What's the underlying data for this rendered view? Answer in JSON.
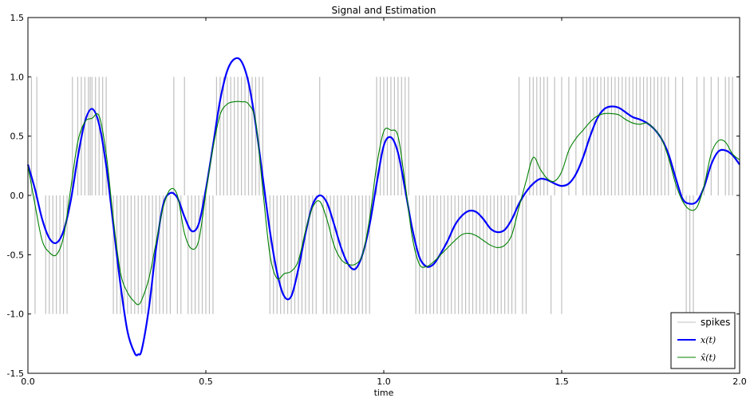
{
  "chart_data": {
    "type": "line",
    "title": "Signal and Estimation",
    "xlabel": "time",
    "ylabel": "",
    "xlim": [
      0.0,
      2.0
    ],
    "ylim": [
      -1.5,
      1.5
    ],
    "xticks": [
      0.0,
      0.5,
      1.0,
      1.5,
      2.0
    ],
    "xtick_labels": [
      "0.0",
      "0.5",
      "1.0",
      "1.5",
      "2.0"
    ],
    "yticks": [
      -1.5,
      -1.0,
      -0.5,
      0.0,
      0.5,
      1.0,
      1.5
    ],
    "ytick_labels": [
      "-1.5",
      "-1.0",
      "-0.5",
      "0.0",
      "0.5",
      "1.0",
      "1.5"
    ],
    "grid": false,
    "legend_position": "bottom-right",
    "legend": [
      "spikes",
      "$x(t)$",
      "$\\hat{x}(t)$"
    ],
    "legend_display": [
      {
        "label": "spikes",
        "math": false
      },
      {
        "label": "x(t)",
        "math": true
      },
      {
        "label": "x̂(t)",
        "math": true
      }
    ],
    "series": [
      {
        "name": "spikes",
        "kind": "spikes",
        "color": "#c0c0c0",
        "positive_times": [
          0.01,
          0.025,
          0.125,
          0.14,
          0.15,
          0.16,
          0.17,
          0.175,
          0.18,
          0.19,
          0.2,
          0.21,
          0.22,
          0.41,
          0.44,
          0.53,
          0.54,
          0.55,
          0.56,
          0.57,
          0.58,
          0.59,
          0.6,
          0.61,
          0.62,
          0.63,
          0.64,
          0.65,
          0.66,
          0.82,
          0.98,
          0.99,
          1.0,
          1.01,
          1.02,
          1.03,
          1.04,
          1.05,
          1.06,
          1.07,
          1.38,
          1.41,
          1.42,
          1.43,
          1.44,
          1.45,
          1.46,
          1.48,
          1.5,
          1.52,
          1.54,
          1.56,
          1.57,
          1.58,
          1.59,
          1.6,
          1.61,
          1.62,
          1.63,
          1.64,
          1.65,
          1.66,
          1.67,
          1.68,
          1.69,
          1.7,
          1.71,
          1.72,
          1.73,
          1.74,
          1.75,
          1.76,
          1.77,
          1.78,
          1.79,
          1.8,
          1.82,
          1.84,
          1.88,
          1.9,
          1.92,
          1.94,
          1.96,
          1.97,
          1.98
        ],
        "negative_times": [
          0.02,
          0.05,
          0.06,
          0.07,
          0.08,
          0.09,
          0.1,
          0.11,
          0.24,
          0.25,
          0.26,
          0.27,
          0.28,
          0.29,
          0.3,
          0.31,
          0.32,
          0.33,
          0.34,
          0.35,
          0.36,
          0.37,
          0.38,
          0.39,
          0.4,
          0.42,
          0.43,
          0.45,
          0.46,
          0.47,
          0.48,
          0.49,
          0.5,
          0.51,
          0.52,
          0.68,
          0.69,
          0.7,
          0.71,
          0.72,
          0.73,
          0.74,
          0.75,
          0.76,
          0.77,
          0.78,
          0.79,
          0.8,
          0.81,
          0.83,
          0.84,
          0.85,
          0.86,
          0.87,
          0.88,
          0.89,
          0.9,
          0.91,
          0.92,
          0.93,
          0.94,
          0.95,
          0.96,
          1.09,
          1.1,
          1.11,
          1.12,
          1.13,
          1.14,
          1.15,
          1.16,
          1.17,
          1.18,
          1.19,
          1.2,
          1.21,
          1.22,
          1.23,
          1.24,
          1.25,
          1.26,
          1.27,
          1.28,
          1.29,
          1.3,
          1.31,
          1.32,
          1.33,
          1.34,
          1.35,
          1.36,
          1.37,
          1.39,
          1.4,
          1.47,
          1.5,
          1.85,
          1.86,
          1.87
        ]
      },
      {
        "name": "$x(t)$",
        "kind": "line",
        "color": "#0000ff",
        "x": [
          0.0,
          0.02,
          0.04,
          0.06,
          0.08,
          0.1,
          0.12,
          0.14,
          0.16,
          0.18,
          0.2,
          0.22,
          0.24,
          0.26,
          0.28,
          0.3,
          0.31,
          0.32,
          0.34,
          0.36,
          0.38,
          0.4,
          0.42,
          0.44,
          0.46,
          0.48,
          0.5,
          0.52,
          0.54,
          0.56,
          0.58,
          0.6,
          0.62,
          0.64,
          0.66,
          0.68,
          0.7,
          0.72,
          0.74,
          0.76,
          0.78,
          0.8,
          0.82,
          0.84,
          0.86,
          0.88,
          0.9,
          0.92,
          0.94,
          0.96,
          0.98,
          1.0,
          1.02,
          1.04,
          1.06,
          1.08,
          1.1,
          1.12,
          1.14,
          1.16,
          1.18,
          1.2,
          1.22,
          1.24,
          1.26,
          1.28,
          1.3,
          1.32,
          1.34,
          1.36,
          1.38,
          1.4,
          1.42,
          1.44,
          1.46,
          1.48,
          1.5,
          1.52,
          1.54,
          1.56,
          1.58,
          1.6,
          1.62,
          1.64,
          1.66,
          1.68,
          1.7,
          1.72,
          1.74,
          1.76,
          1.78,
          1.8,
          1.82,
          1.84,
          1.86,
          1.88,
          1.9,
          1.92,
          1.94,
          1.96,
          1.98,
          2.0
        ],
        "y": [
          0.26,
          0.05,
          -0.2,
          -0.36,
          -0.4,
          -0.3,
          -0.05,
          0.32,
          0.62,
          0.73,
          0.6,
          0.25,
          -0.25,
          -0.75,
          -1.15,
          -1.33,
          -1.34,
          -1.3,
          -0.95,
          -0.45,
          -0.08,
          0.02,
          -0.02,
          -0.18,
          -0.3,
          -0.24,
          0.05,
          0.42,
          0.8,
          1.05,
          1.15,
          1.13,
          0.95,
          0.6,
          0.15,
          -0.3,
          -0.65,
          -0.85,
          -0.85,
          -0.62,
          -0.32,
          -0.08,
          0.0,
          -0.06,
          -0.24,
          -0.44,
          -0.58,
          -0.62,
          -0.5,
          -0.25,
          0.1,
          0.42,
          0.49,
          0.36,
          0.05,
          -0.28,
          -0.52,
          -0.6,
          -0.58,
          -0.49,
          -0.38,
          -0.25,
          -0.17,
          -0.13,
          -0.14,
          -0.2,
          -0.28,
          -0.31,
          -0.29,
          -0.2,
          -0.07,
          0.03,
          0.1,
          0.14,
          0.13,
          0.1,
          0.08,
          0.1,
          0.18,
          0.32,
          0.5,
          0.65,
          0.73,
          0.75,
          0.74,
          0.7,
          0.66,
          0.64,
          0.61,
          0.56,
          0.48,
          0.35,
          0.15,
          -0.03,
          -0.07,
          -0.05,
          0.07,
          0.26,
          0.37,
          0.38,
          0.34,
          0.26
        ]
      },
      {
        "name": "$\\hat{x}(t)$",
        "kind": "line",
        "color": "#008000",
        "x": [
          0.0,
          0.02,
          0.04,
          0.06,
          0.08,
          0.1,
          0.12,
          0.14,
          0.16,
          0.18,
          0.2,
          0.22,
          0.24,
          0.26,
          0.28,
          0.3,
          0.31,
          0.32,
          0.34,
          0.36,
          0.38,
          0.4,
          0.42,
          0.44,
          0.46,
          0.48,
          0.5,
          0.52,
          0.54,
          0.56,
          0.58,
          0.6,
          0.62,
          0.64,
          0.66,
          0.68,
          0.7,
          0.72,
          0.74,
          0.76,
          0.78,
          0.8,
          0.82,
          0.84,
          0.86,
          0.88,
          0.9,
          0.92,
          0.94,
          0.96,
          0.98,
          1.0,
          1.02,
          1.04,
          1.06,
          1.08,
          1.1,
          1.12,
          1.14,
          1.16,
          1.18,
          1.2,
          1.22,
          1.24,
          1.26,
          1.28,
          1.3,
          1.32,
          1.34,
          1.36,
          1.38,
          1.4,
          1.42,
          1.44,
          1.46,
          1.48,
          1.5,
          1.52,
          1.54,
          1.56,
          1.58,
          1.6,
          1.62,
          1.64,
          1.66,
          1.68,
          1.7,
          1.72,
          1.74,
          1.76,
          1.78,
          1.8,
          1.82,
          1.84,
          1.86,
          1.88,
          1.9,
          1.92,
          1.94,
          1.96,
          1.98,
          2.0
        ],
        "y": [
          0.25,
          -0.08,
          -0.38,
          -0.48,
          -0.5,
          -0.35,
          0.05,
          0.45,
          0.62,
          0.65,
          0.67,
          0.35,
          -0.2,
          -0.65,
          -0.82,
          -0.9,
          -0.92,
          -0.88,
          -0.7,
          -0.4,
          -0.1,
          0.05,
          0.0,
          -0.32,
          -0.45,
          -0.38,
          0.02,
          0.4,
          0.68,
          0.77,
          0.79,
          0.79,
          0.77,
          0.62,
          0.05,
          -0.5,
          -0.7,
          -0.66,
          -0.64,
          -0.55,
          -0.3,
          -0.1,
          -0.05,
          -0.2,
          -0.42,
          -0.54,
          -0.58,
          -0.58,
          -0.5,
          -0.2,
          0.25,
          0.54,
          0.55,
          0.5,
          0.1,
          -0.35,
          -0.58,
          -0.6,
          -0.56,
          -0.5,
          -0.44,
          -0.38,
          -0.33,
          -0.32,
          -0.34,
          -0.38,
          -0.42,
          -0.44,
          -0.42,
          -0.33,
          -0.1,
          0.12,
          0.32,
          0.22,
          0.14,
          0.12,
          0.2,
          0.38,
          0.48,
          0.55,
          0.62,
          0.67,
          0.69,
          0.69,
          0.68,
          0.64,
          0.61,
          0.6,
          0.61,
          0.56,
          0.48,
          0.32,
          0.1,
          -0.05,
          -0.12,
          -0.1,
          0.08,
          0.35,
          0.46,
          0.45,
          0.35,
          0.3
        ]
      }
    ]
  }
}
